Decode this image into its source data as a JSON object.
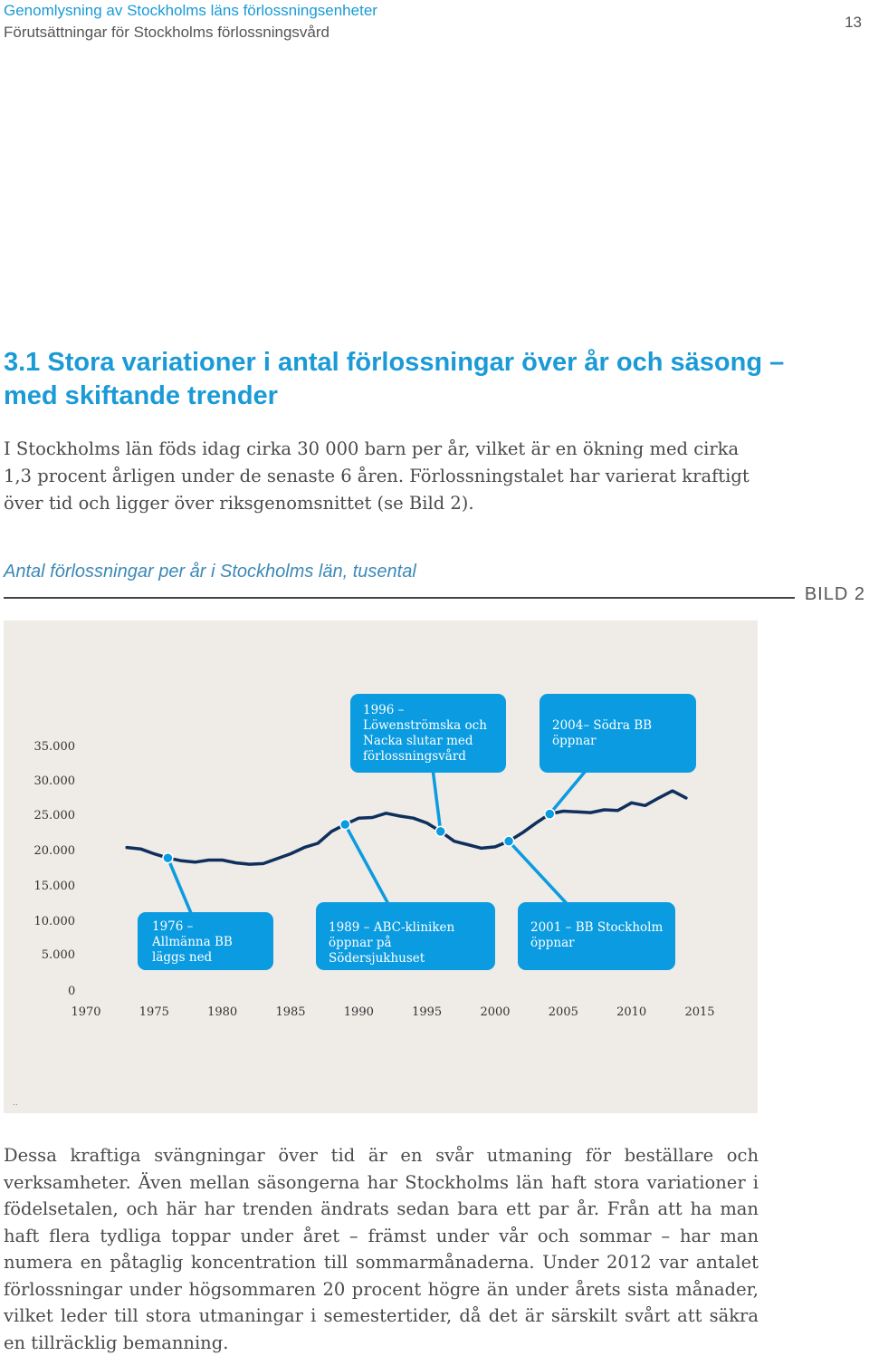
{
  "header": {
    "title": "Genomlysning av Stockholms läns förlossningsenheter",
    "subtitle": "Förutsättningar för Stockholms förlossningsvård",
    "page_number": "13"
  },
  "section": {
    "heading": "3.1 Stora variationer i antal förlossningar över år och säsong – med skiftande trender",
    "intro": "I Stockholms län föds idag cirka 30 000 barn per år, vilket är en ökning med cirka 1,3 procent årligen under de senaste 6 åren. Förlossningstalet har varierat kraftigt över tid och ligger över riksgenomsnittet (se Bild 2)."
  },
  "figure": {
    "caption": "Antal förlossningar per år i Stockholms län, tusental",
    "label": "BILD 2"
  },
  "chart_data": {
    "type": "line",
    "title": "Antal förlossningar per år i Stockholms län, tusental",
    "xlabel": "",
    "ylabel": "",
    "x_ticks": [
      "1970",
      "1975",
      "1980",
      "1985",
      "1990",
      "1995",
      "2000",
      "2005",
      "2010",
      "2015"
    ],
    "y_ticks": [
      "0",
      "5.000",
      "10.000",
      "15.000",
      "20.000",
      "25.000",
      "30.000",
      "35.000"
    ],
    "y_tick_values": [
      0,
      5000,
      10000,
      15000,
      20000,
      25000,
      30000,
      35000
    ],
    "xlim": [
      1968,
      2017
    ],
    "ylim": [
      0,
      35000
    ],
    "grid": false,
    "series": [
      {
        "color": "#0f2f5c",
        "points": [
          [
            1973,
            20400
          ],
          [
            1974,
            20200
          ],
          [
            1975,
            19500
          ],
          [
            1976,
            18900
          ],
          [
            1977,
            18500
          ],
          [
            1978,
            18300
          ],
          [
            1979,
            18600
          ],
          [
            1980,
            18600
          ],
          [
            1981,
            18200
          ],
          [
            1982,
            18000
          ],
          [
            1983,
            18100
          ],
          [
            1984,
            18800
          ],
          [
            1985,
            19500
          ],
          [
            1986,
            20400
          ],
          [
            1987,
            21000
          ],
          [
            1988,
            22700
          ],
          [
            1989,
            23700
          ],
          [
            1990,
            24600
          ],
          [
            1991,
            24700
          ],
          [
            1992,
            25300
          ],
          [
            1993,
            24900
          ],
          [
            1994,
            24600
          ],
          [
            1995,
            23900
          ],
          [
            1996,
            22700
          ],
          [
            1997,
            21300
          ],
          [
            1998,
            20800
          ],
          [
            1999,
            20300
          ],
          [
            2000,
            20500
          ],
          [
            2001,
            21300
          ],
          [
            2002,
            22500
          ],
          [
            2003,
            23900
          ],
          [
            2004,
            25200
          ],
          [
            2005,
            25600
          ],
          [
            2006,
            25500
          ],
          [
            2007,
            25400
          ],
          [
            2008,
            25800
          ],
          [
            2009,
            25700
          ],
          [
            2010,
            26800
          ],
          [
            2011,
            26400
          ],
          [
            2012,
            27500
          ],
          [
            2013,
            28500
          ],
          [
            2014,
            27500
          ]
        ]
      }
    ],
    "markers": [
      {
        "year": 1976,
        "value": 18900
      },
      {
        "year": 1989,
        "value": 23700
      },
      {
        "year": 1996,
        "value": 22700
      },
      {
        "year": 2001,
        "value": 21300
      },
      {
        "year": 2004,
        "value": 25200
      }
    ],
    "annotations": [
      {
        "year": 1976,
        "text": "1976 – Allmänna BB läggs ned"
      },
      {
        "year": 1989,
        "text": "1989 – ABC-kliniken öppnar på Södersjukhuset"
      },
      {
        "year": 1996,
        "text": "1996 – Löwenströmska och Nacka slutar med förlossningsvård"
      },
      {
        "year": 2001,
        "text": "2001 – BB Stockholm öppnar"
      },
      {
        "year": 2004,
        "text": "2004– Södra BB öppnar"
      }
    ],
    "line_color": "#0f2f5c",
    "marker_color": "#0a9be0",
    "annotation_box_color": "#0a9be0",
    "background_color": "#efebe7"
  },
  "chart_footnote": "..",
  "body_text": "Dessa kraftiga svängningar över tid är en svår utmaning för beställare och verksamheter. Även mellan säsongerna har Stockholms län haft stora variationer i födelsetalen, och här har trenden ändrats sedan bara ett par år. Från att ha man haft flera tydliga toppar under året – främst under vår och sommar – har man numera en påtaglig koncentration till sommarmånaderna. Under 2012 var antalet förlossningar under högsommaren 20 procent högre än under årets sista månader, vilket leder till stora utmaningar i semestertider, då det är särskilt svårt att säkra en tillräcklig bemanning."
}
